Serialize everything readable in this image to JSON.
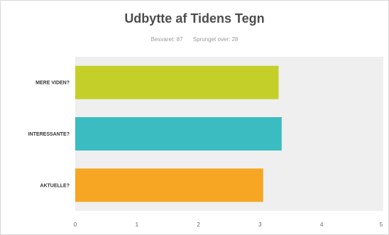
{
  "chart_data": {
    "type": "bar",
    "orientation": "horizontal",
    "title": "Udbytte af Tidens Tegn",
    "subtitle_parts": [
      "Besvaret: 87",
      "Sprunget over: 28"
    ],
    "categories": [
      "MERE VIDEN?",
      "INTERESSANTE?",
      "AKTUELLE?"
    ],
    "values": [
      3.3,
      3.35,
      3.05
    ],
    "colors": [
      "#c5cf2a",
      "#3bbcc0",
      "#f6a623"
    ],
    "xlim": [
      0,
      5
    ],
    "xticks": [
      "0",
      "1",
      "2",
      "3",
      "4",
      "5"
    ],
    "xlabel": "",
    "ylabel": "",
    "grid": false,
    "legend": "none"
  }
}
